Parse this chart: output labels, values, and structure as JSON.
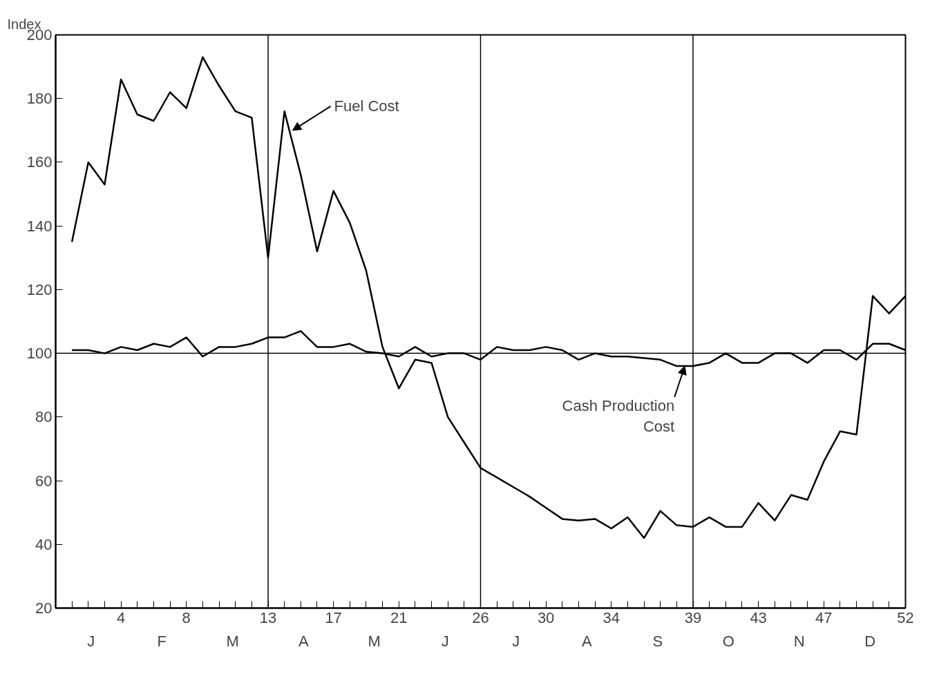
{
  "chart_data": {
    "type": "line",
    "ylabel": "Index",
    "x": [
      1,
      2,
      3,
      4,
      5,
      6,
      7,
      8,
      9,
      10,
      11,
      12,
      13,
      14,
      15,
      16,
      17,
      18,
      19,
      20,
      21,
      22,
      23,
      24,
      25,
      26,
      27,
      28,
      29,
      30,
      31,
      32,
      33,
      34,
      35,
      36,
      37,
      38,
      39,
      40,
      41,
      42,
      43,
      44,
      45,
      46,
      47,
      48,
      49,
      50,
      51,
      52
    ],
    "series": [
      {
        "color": "#000000",
        "values": [
          135,
          160,
          153,
          186,
          175,
          173,
          182,
          177,
          193,
          184,
          176,
          174,
          130,
          176,
          156,
          132,
          151,
          141,
          126,
          102,
          89,
          98,
          97,
          80,
          72,
          64,
          61,
          58,
          55,
          51.5,
          48,
          47.5,
          48,
          45,
          48.5,
          42,
          50.5,
          46,
          45.5,
          48.5,
          45.5,
          45.5,
          53,
          47.5,
          55.5,
          54,
          66,
          75.5,
          74.5,
          118,
          112.5,
          118
        ]
      },
      {
        "color": "#000000",
        "values": [
          101,
          101,
          100,
          102,
          101,
          103,
          102,
          105,
          99,
          102,
          102,
          103,
          105,
          105,
          107,
          102,
          102,
          103,
          100.5,
          100,
          99,
          102,
          99,
          100,
          100,
          98,
          102,
          101,
          101,
          102,
          101,
          98,
          100,
          99,
          99,
          98.5,
          98,
          96,
          96,
          97,
          100,
          97,
          97,
          100,
          100,
          97,
          101,
          101,
          98,
          103,
          103,
          101
        ]
      }
    ],
    "xlim": [
      0,
      52
    ],
    "ylim": [
      20,
      200
    ],
    "xticks": [
      {
        "value": 1,
        "label": null
      },
      {
        "value": 2,
        "label": null
      },
      {
        "value": 3,
        "label": null
      },
      4,
      {
        "value": 5,
        "label": null
      },
      {
        "value": 6,
        "label": null
      },
      {
        "value": 7,
        "label": null
      },
      8,
      {
        "value": 9,
        "label": null
      },
      {
        "value": 10,
        "label": null
      },
      {
        "value": 11,
        "label": null
      },
      {
        "value": 12,
        "label": null
      },
      13,
      {
        "value": 14,
        "label": null
      },
      {
        "value": 15,
        "label": null
      },
      {
        "value": 16,
        "label": null
      },
      17,
      {
        "value": 18,
        "label": null
      },
      {
        "value": 19,
        "label": null
      },
      {
        "value": 20,
        "label": null
      },
      21,
      {
        "value": 22,
        "label": null
      },
      {
        "value": 23,
        "label": null
      },
      {
        "value": 24,
        "label": null
      },
      {
        "value": 25,
        "label": null
      },
      26,
      {
        "value": 27,
        "label": null
      },
      {
        "value": 28,
        "label": null
      },
      {
        "value": 29,
        "label": null
      },
      30,
      {
        "value": 31,
        "label": null
      },
      {
        "value": 32,
        "label": null
      },
      {
        "value": 33,
        "label": null
      },
      34,
      {
        "value": 35,
        "label": null
      },
      {
        "value": 36,
        "label": null
      },
      {
        "value": 37,
        "label": null
      },
      {
        "value": 38,
        "label": null
      },
      39,
      {
        "value": 40,
        "label": null
      },
      {
        "value": 41,
        "label": null
      },
      {
        "value": 42,
        "label": null
      },
      43,
      {
        "value": 44,
        "label": null
      },
      {
        "value": 45,
        "label": null
      },
      {
        "value": 46,
        "label": null
      },
      47,
      {
        "value": 48,
        "label": null
      },
      {
        "value": 49,
        "label": null
      },
      {
        "value": 50,
        "label": null
      },
      {
        "value": 51,
        "label": null
      },
      52
    ],
    "yticks": [
      20,
      40,
      60,
      80,
      100,
      120,
      140,
      160,
      180,
      200
    ],
    "ref_lines": [
      {
        "axis": "y",
        "value": 100
      },
      {
        "axis": "x",
        "value": 13
      },
      {
        "axis": "x",
        "value": 26
      },
      {
        "axis": "x",
        "value": 39
      }
    ],
    "annotations": [
      {
        "text": "Fuel Cost",
        "x": 14.5,
        "y": 170
      },
      {
        "text": "Cash Production\nCost",
        "x": 38.5,
        "y": 96
      },
      "J",
      "F",
      "M",
      "A",
      "M",
      "J",
      "J",
      "A",
      "S",
      "O",
      "N",
      "D"
    ],
    "grid": false,
    "marker": "none",
    "line_style": "solid"
  }
}
